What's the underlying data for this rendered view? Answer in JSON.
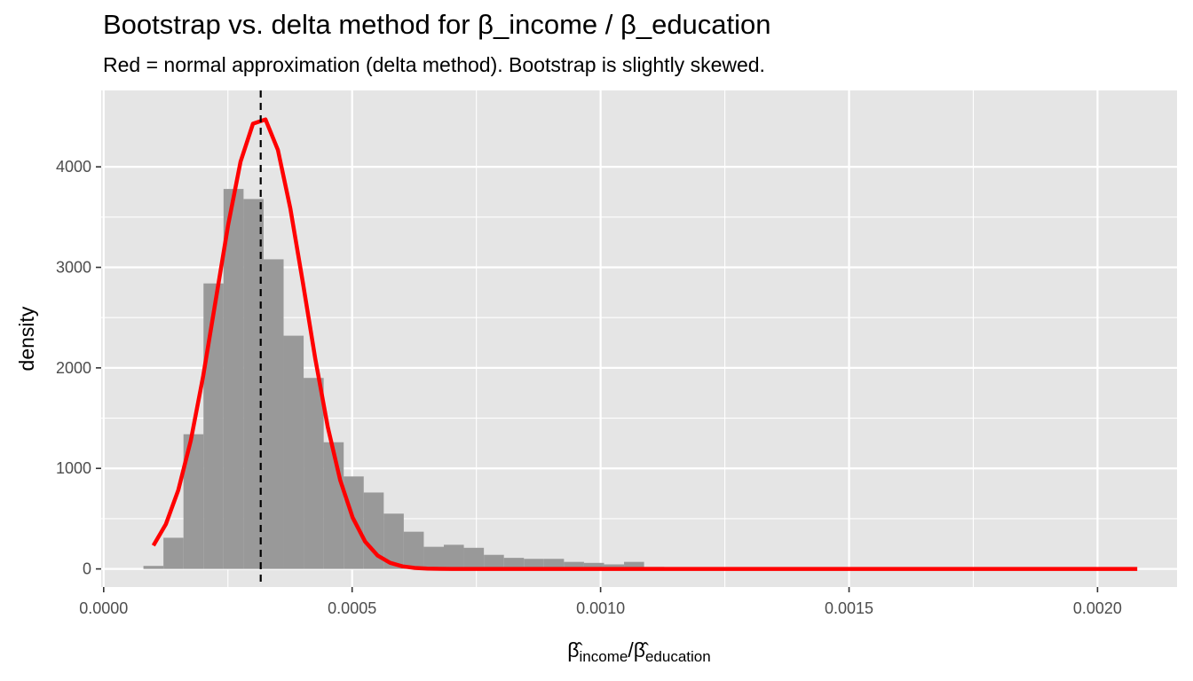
{
  "title": "Bootstrap vs. delta method for β_income / β_education",
  "subtitle": "Red = normal approximation (delta method). Bootstrap is slightly skewed.",
  "colors": {
    "panel_bg": "#e5e5e5",
    "grid": "#ffffff",
    "histogram": "#999999",
    "normal_curve": "#ff0000",
    "reference_line": "#000000"
  },
  "chart_data": {
    "type": "bar",
    "xlabel": {
      "base1": "β̂",
      "sub1": "income",
      "sep": "/",
      "base2": "β̂",
      "sub2": "education"
    },
    "ylabel": "density",
    "xlim": [
      -5e-06,
      0.00216
    ],
    "ylim": [
      -180,
      4760
    ],
    "x_ticks": [
      {
        "value": 0.0,
        "label": "0.0000"
      },
      {
        "value": 0.0005,
        "label": "0.0005"
      },
      {
        "value": 0.001,
        "label": "0.0010"
      },
      {
        "value": 0.0015,
        "label": "0.0015"
      },
      {
        "value": 0.002,
        "label": "0.0020"
      }
    ],
    "y_ticks": [
      {
        "value": 0,
        "label": "0"
      },
      {
        "value": 1000,
        "label": "1000"
      },
      {
        "value": 2000,
        "label": "2000"
      },
      {
        "value": 3000,
        "label": "3000"
      },
      {
        "value": 4000,
        "label": "4000"
      }
    ],
    "minor_x": [
      0.00025,
      0.00075,
      0.00125,
      0.00175
    ],
    "minor_y": [
      500,
      1500,
      2500,
      3500
    ],
    "histogram": {
      "bin_start": 8e-05,
      "bin_width": 4.03e-05,
      "densities": [
        30,
        310,
        1340,
        2840,
        3780,
        3680,
        3080,
        2320,
        1900,
        1260,
        920,
        760,
        550,
        370,
        220,
        240,
        210,
        140,
        110,
        100,
        100,
        70,
        60,
        45,
        70,
        20,
        15,
        10,
        10,
        5
      ]
    },
    "normal_curve": {
      "mean": 0.000316,
      "sd": 8.87e-05,
      "x_min": 0.0001,
      "x_max": 0.00208,
      "points": 80
    },
    "reference_line_x": 0.000316
  }
}
